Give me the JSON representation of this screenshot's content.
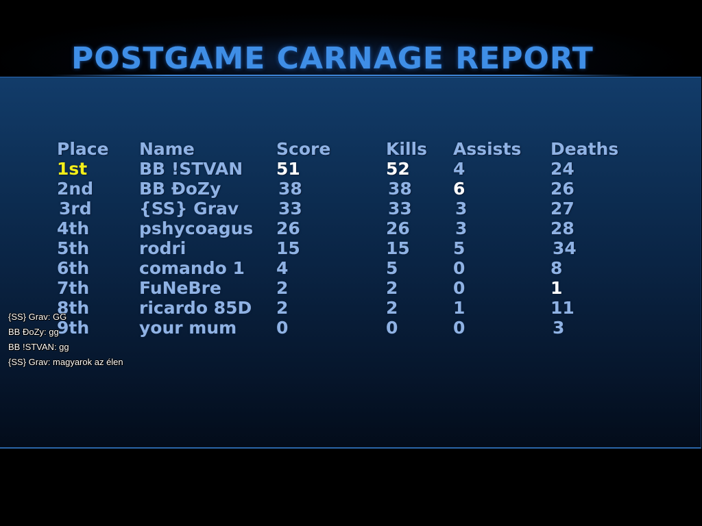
{
  "title": "POSTGAME CARNAGE REPORT",
  "columns": {
    "place": "Place",
    "name": "Name",
    "score": "Score",
    "kills": "Kills",
    "assists": "Assists",
    "deaths": "Deaths"
  },
  "rows": [
    {
      "place": "1st",
      "name": "BB !STVAN",
      "score": "51",
      "kills": "52",
      "assists": "4",
      "deaths": "24"
    },
    {
      "place": "2nd",
      "name": "BB ĐoZy",
      "score": "38",
      "kills": "38",
      "assists": "6",
      "deaths": "26"
    },
    {
      "place": "3rd",
      "name": "{SS} Grav",
      "score": "33",
      "kills": "33",
      "assists": "3",
      "deaths": "27"
    },
    {
      "place": "4th",
      "name": "pshycoagus",
      "score": "26",
      "kills": "26",
      "assists": "3",
      "deaths": "28"
    },
    {
      "place": "5th",
      "name": "rodri",
      "score": "15",
      "kills": "15",
      "assists": "5",
      "deaths": "34"
    },
    {
      "place": "6th",
      "name": "comando 1",
      "score": "4",
      "kills": "5",
      "assists": "0",
      "deaths": "8"
    },
    {
      "place": "7th",
      "name": "FuNeBre",
      "score": "2",
      "kills": "2",
      "assists": "0",
      "deaths": "1"
    },
    {
      "place": "8th",
      "name": "ricardo 85D",
      "score": "2",
      "kills": "2",
      "assists": "1",
      "deaths": "11"
    },
    {
      "place": "9th",
      "name": "your mum",
      "score": "0",
      "kills": "0",
      "assists": "0",
      "deaths": "3"
    }
  ],
  "highlights": {
    "first_place_color": "#f2ee1a",
    "best_stat_color": "#ffffff",
    "default_text_color": "#8fb2e4",
    "title_color": "#3f8ee6"
  },
  "chat": [
    "{SS} Grav: GG",
    "BB ĐoZy: gg",
    "BB !STVAN: gg",
    "{SS} Grav: magyarok az élen"
  ]
}
